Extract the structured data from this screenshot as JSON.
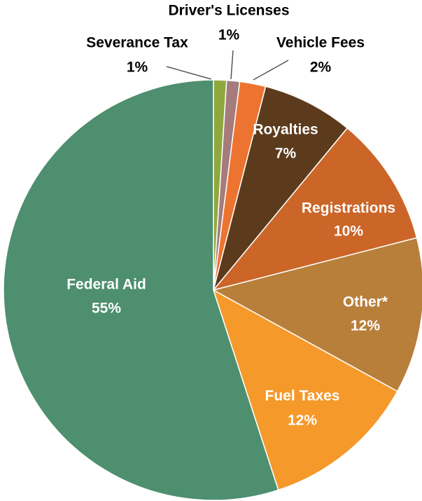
{
  "chart_data": {
    "type": "pie",
    "categories": [
      "Severance Tax",
      "Driver's Licenses",
      "Vehicle Fees",
      "Royalties",
      "Registrations",
      "Other*",
      "Fuel Taxes",
      "Federal Aid"
    ],
    "values": [
      1,
      1,
      2,
      7,
      10,
      12,
      12,
      55
    ],
    "value_labels": [
      "1%",
      "1%",
      "2%",
      "7%",
      "10%",
      "12%",
      "12%",
      "55%"
    ],
    "colors": [
      "#8fa83e",
      "#a57b7c",
      "#ec7430",
      "#5c3b1c",
      "#cb6628",
      "#b87f3b",
      "#f5992b",
      "#4d8f6f"
    ]
  }
}
